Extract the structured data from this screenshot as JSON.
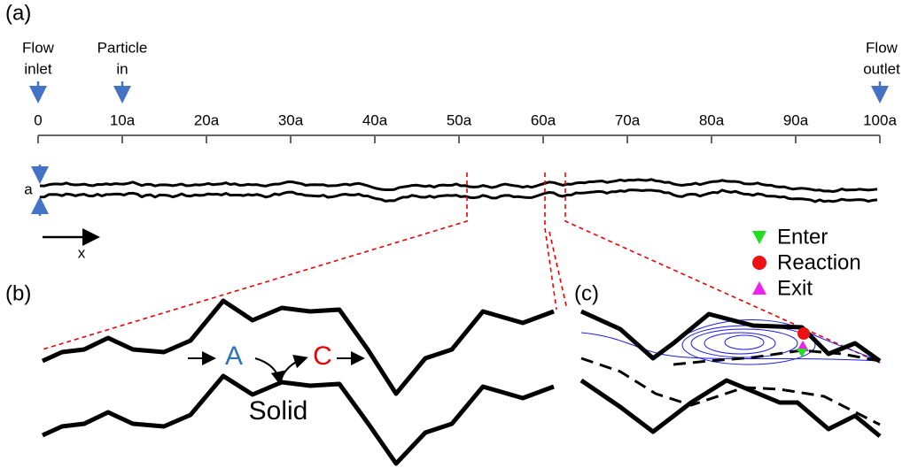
{
  "panels": {
    "a": "(a)",
    "b": "(b)",
    "c": "(c)"
  },
  "annotations": {
    "flow_inlet": [
      "Flow",
      "inlet"
    ],
    "particle_in": [
      "Particle",
      "in"
    ],
    "flow_outlet": [
      "Flow",
      "outlet"
    ],
    "aperture": "a",
    "direction": "x"
  },
  "axis_ticks": [
    "0",
    "10a",
    "20a",
    "30a",
    "40a",
    "50a",
    "60a",
    "70a",
    "80a",
    "90a",
    "100a"
  ],
  "reaction": {
    "reactant": "A",
    "product": "C",
    "solid": "Solid"
  },
  "legend": [
    {
      "name": "Enter",
      "color": "#22dd22"
    },
    {
      "name": "Reaction",
      "color": "#ee1111"
    },
    {
      "name": "Exit",
      "color": "#ee22ee"
    }
  ]
}
